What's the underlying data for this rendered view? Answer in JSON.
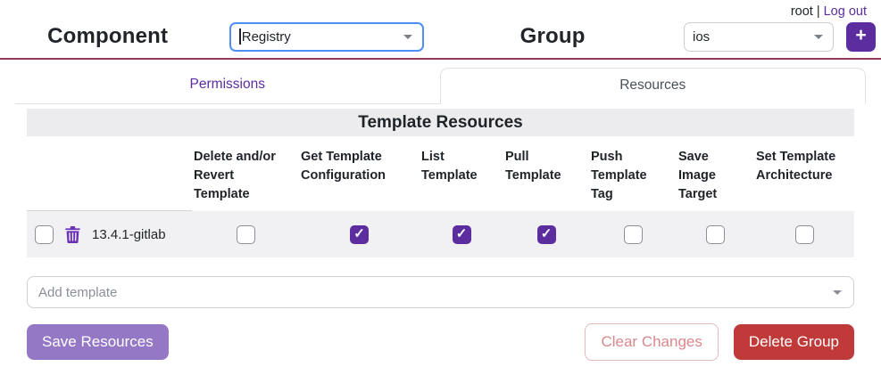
{
  "topbar": {
    "username": "root",
    "separator": "|",
    "logout_label": "Log out"
  },
  "header": {
    "component_label": "Component",
    "component_value": "Registry",
    "group_label": "Group",
    "group_value": "ios",
    "add_button_label": "+"
  },
  "tabs": [
    {
      "label": "Permissions",
      "active": false
    },
    {
      "label": "Resources",
      "active": true
    }
  ],
  "resources": {
    "title": "Template Resources",
    "columns": [
      "Delete and/or Revert Template",
      "Get Template Configuration",
      "List Template",
      "Pull Template",
      "Push Template Tag",
      "Save Image Target",
      "Set Template Architecture"
    ],
    "rows": [
      {
        "name": "13.4.1-gitlab",
        "selected": false,
        "checks": [
          false,
          true,
          true,
          true,
          false,
          false,
          false
        ]
      }
    ],
    "add_placeholder": "Add template"
  },
  "actions": {
    "save_label": "Save Resources",
    "clear_label": "Clear Changes",
    "delete_label": "Delete Group"
  },
  "icons": {
    "trash": "trash-icon",
    "caret": "chevron-down-icon",
    "plus": "plus-icon"
  },
  "colors": {
    "accent_purple": "#5b2d9e",
    "save_purple": "#9477c5",
    "danger_red": "#c03a3a",
    "clear_red": "#d9888d",
    "header_line": "#8d3963",
    "focus_blue": "#4e8ef7",
    "bar_gray": "#ececee",
    "row_gray": "#f1f1f3"
  }
}
